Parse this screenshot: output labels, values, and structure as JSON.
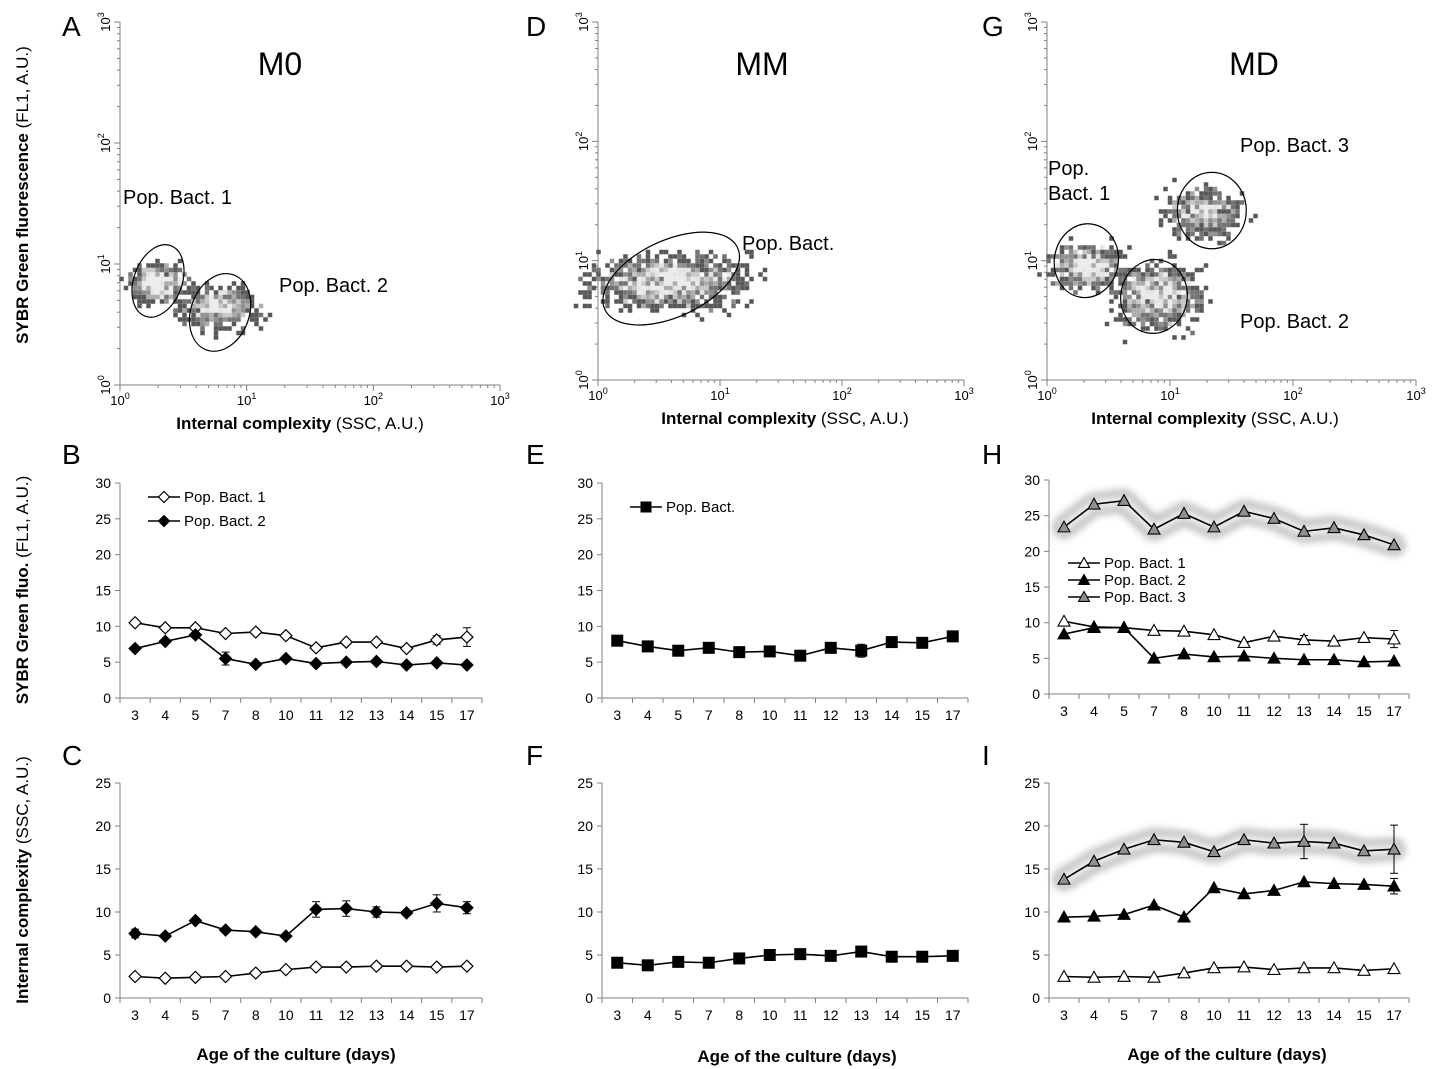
{
  "figure": {
    "y_label_row1": {
      "bold": "SYBR Green fluorescence",
      "normal": " (FL1, A.U.)"
    },
    "y_label_row2": {
      "bold": "SYBR Green fluo.",
      "normal": " (FL1, A.U.)"
    },
    "y_label_row3": {
      "bold": "Internal complexity",
      "normal": " (SSC, A.U.)"
    },
    "flow_xlabel": {
      "bold": "Internal complexity",
      "normal": " (SSC, A.U.)"
    },
    "time_xlabel": "Age of the culture (days)",
    "flow_ticks": [
      {
        "base": "10",
        "exp": "0"
      },
      {
        "base": "10",
        "exp": "1"
      },
      {
        "base": "10",
        "exp": "2"
      },
      {
        "base": "10",
        "exp": "3"
      }
    ]
  },
  "colors": {
    "axis": "#808080",
    "line": "#000000",
    "filled_marker": "#000000",
    "open_marker": "#ffffff",
    "pop3_marker": "#909090",
    "halo": "#9a9a9a",
    "density_high": "#e6e6e6",
    "density_low": "#3a3a3a"
  },
  "chart_data": [
    {
      "id": "A",
      "panel_letter": "A",
      "title": "M0",
      "type": "scatter",
      "note": "flow cytometry density plot",
      "x_scale": "log",
      "y_scale": "log",
      "xlim": [
        1,
        1000
      ],
      "ylim": [
        1,
        1000
      ],
      "xlabel": "Internal complexity (SSC, A.U.)",
      "ylabel": "SYBR Green fluorescence (FL1, A.U.)",
      "populations": [
        {
          "label": "Pop. Bact. 1",
          "center_x": 2.1,
          "center_y": 7.2
        },
        {
          "label": "Pop. Bact. 2",
          "center_x": 6.5,
          "center_y": 4.3
        }
      ]
    },
    {
      "id": "D",
      "panel_letter": "D",
      "title": "MM",
      "type": "scatter",
      "note": "flow cytometry density plot",
      "x_scale": "log",
      "y_scale": "log",
      "xlim": [
        1,
        1000
      ],
      "ylim": [
        1,
        1000
      ],
      "xlabel": "Internal complexity (SSC, A.U.)",
      "populations": [
        {
          "label": "Pop. Bact.",
          "center_x": 3.3,
          "center_y": 6.6
        }
      ]
    },
    {
      "id": "G",
      "panel_letter": "G",
      "title": "MD",
      "type": "scatter",
      "note": "flow cytometry density plot",
      "x_scale": "log",
      "y_scale": "log",
      "xlim": [
        1,
        1000
      ],
      "ylim": [
        1,
        1000
      ],
      "xlabel": "Internal complexity (SSC, A.U.)",
      "populations": [
        {
          "label": "Pop. Bact. 1",
          "center_x": 2.0,
          "center_y": 9.0
        },
        {
          "label": "Pop. Bact. 2",
          "center_x": 8.0,
          "center_y": 5.0
        },
        {
          "label": "Pop. Bact. 3",
          "center_x": 18.0,
          "center_y": 25.0
        }
      ]
    },
    {
      "id": "B",
      "panel_letter": "B",
      "type": "line",
      "categories": [
        "3",
        "4",
        "5",
        "7",
        "8",
        "10",
        "11",
        "12",
        "13",
        "14",
        "15",
        "17"
      ],
      "ylim": [
        0,
        30
      ],
      "yticks": [
        0,
        5,
        10,
        15,
        20,
        25,
        30
      ],
      "ylabel": "SYBR Green fluo. (FL1, A.U.)",
      "legend": "top-left",
      "series": [
        {
          "name": "Pop. Bact. 1",
          "marker": "diamond-open",
          "halo": false,
          "values": [
            10.5,
            9.8,
            9.8,
            9.0,
            9.2,
            8.7,
            7.0,
            7.8,
            7.8,
            6.9,
            8.1,
            8.5
          ],
          "errors": [
            0,
            0,
            0,
            0,
            0,
            0,
            0,
            0,
            0,
            0,
            0.6,
            1.3
          ]
        },
        {
          "name": "Pop. Bact. 2",
          "marker": "diamond-filled",
          "halo": false,
          "values": [
            6.9,
            7.9,
            8.8,
            5.5,
            4.7,
            5.5,
            4.8,
            5.0,
            5.1,
            4.6,
            4.9,
            4.6
          ],
          "errors": [
            0,
            0,
            0,
            0.9,
            0,
            0,
            0,
            0,
            0,
            0,
            0,
            0
          ]
        }
      ]
    },
    {
      "id": "E",
      "panel_letter": "E",
      "type": "line",
      "categories": [
        "3",
        "4",
        "5",
        "7",
        "8",
        "10",
        "11",
        "12",
        "13",
        "14",
        "15",
        "17"
      ],
      "ylim": [
        0,
        30
      ],
      "yticks": [
        0,
        5,
        10,
        15,
        20,
        25,
        30
      ],
      "legend": "top-left",
      "series": [
        {
          "name": "Pop. Bact.",
          "marker": "square-filled",
          "halo": false,
          "values": [
            8.0,
            7.2,
            6.6,
            7.0,
            6.4,
            6.5,
            5.9,
            7.0,
            6.6,
            7.8,
            7.7,
            8.6
          ],
          "errors": [
            0,
            0,
            0,
            0,
            0,
            0,
            0,
            0,
            0.9,
            0,
            0,
            0
          ]
        }
      ]
    },
    {
      "id": "H",
      "panel_letter": "H",
      "type": "line",
      "categories": [
        "3",
        "4",
        "5",
        "7",
        "8",
        "10",
        "11",
        "12",
        "13",
        "14",
        "15",
        "17"
      ],
      "ylim": [
        0,
        30
      ],
      "yticks": [
        0,
        5,
        10,
        15,
        20,
        25,
        30
      ],
      "legend": "center-left",
      "series": [
        {
          "name": "Pop. Bact. 1",
          "marker": "triangle-open",
          "halo": false,
          "values": [
            10.2,
            9.4,
            9.3,
            8.9,
            8.8,
            8.3,
            7.2,
            8.1,
            7.6,
            7.4,
            7.9,
            7.7
          ],
          "errors": [
            0,
            0,
            0,
            0,
            0,
            0,
            0,
            0,
            0.6,
            0,
            0,
            1.2
          ]
        },
        {
          "name": "Pop. Bact. 2",
          "marker": "triangle-filled",
          "halo": false,
          "values": [
            8.4,
            9.3,
            9.3,
            5.0,
            5.6,
            5.2,
            5.3,
            5.0,
            4.8,
            4.8,
            4.5,
            4.6
          ],
          "errors": [
            0,
            0,
            0,
            0,
            0,
            0,
            0,
            0,
            0,
            0,
            0,
            0
          ]
        },
        {
          "name": "Pop. Bact. 3",
          "marker": "triangle-gray",
          "halo": true,
          "values": [
            23.4,
            26.6,
            27.1,
            23.1,
            25.3,
            23.4,
            25.6,
            24.6,
            22.8,
            23.3,
            22.3,
            20.9
          ],
          "errors": [
            0,
            0,
            0,
            0,
            0,
            0,
            0,
            0,
            0,
            0,
            0,
            0
          ]
        }
      ]
    },
    {
      "id": "C",
      "panel_letter": "C",
      "type": "line",
      "categories": [
        "3",
        "4",
        "5",
        "7",
        "8",
        "10",
        "11",
        "12",
        "13",
        "14",
        "15",
        "17"
      ],
      "ylim": [
        0,
        25
      ],
      "yticks": [
        0,
        5,
        10,
        15,
        20,
        25
      ],
      "ylabel": "Internal complexity (SSC, A.U.)",
      "xlabel": "Age of the culture (days)",
      "series": [
        {
          "name": "Pop. Bact. 1",
          "marker": "diamond-open",
          "halo": false,
          "values": [
            2.5,
            2.3,
            2.4,
            2.5,
            2.9,
            3.3,
            3.6,
            3.6,
            3.7,
            3.7,
            3.6,
            3.7
          ],
          "errors": [
            0,
            0,
            0,
            0,
            0,
            0,
            0,
            0,
            0,
            0,
            0,
            0
          ]
        },
        {
          "name": "Pop. Bact. 2",
          "marker": "diamond-filled",
          "halo": false,
          "values": [
            7.5,
            7.2,
            9.0,
            7.9,
            7.7,
            7.2,
            10.3,
            10.4,
            10.0,
            9.9,
            11.0,
            10.5
          ],
          "errors": [
            0.5,
            0,
            0,
            0,
            0,
            0,
            0.9,
            0.9,
            0.6,
            0,
            1.0,
            0.7
          ]
        }
      ]
    },
    {
      "id": "F",
      "panel_letter": "F",
      "type": "line",
      "categories": [
        "3",
        "4",
        "5",
        "7",
        "8",
        "10",
        "11",
        "12",
        "13",
        "14",
        "15",
        "17"
      ],
      "ylim": [
        0,
        25
      ],
      "yticks": [
        0,
        5,
        10,
        15,
        20,
        25
      ],
      "xlabel": "Age of the culture (days)",
      "series": [
        {
          "name": "Pop. Bact.",
          "marker": "square-filled",
          "halo": false,
          "values": [
            4.1,
            3.8,
            4.2,
            4.1,
            4.6,
            5.0,
            5.1,
            4.9,
            5.4,
            4.8,
            4.8,
            4.9
          ],
          "errors": [
            0,
            0,
            0,
            0,
            0,
            0,
            0,
            0,
            0,
            0,
            0,
            0
          ]
        }
      ]
    },
    {
      "id": "I",
      "panel_letter": "I",
      "type": "line",
      "categories": [
        "3",
        "4",
        "5",
        "7",
        "8",
        "10",
        "11",
        "12",
        "13",
        "14",
        "15",
        "17"
      ],
      "ylim": [
        0,
        25
      ],
      "yticks": [
        0,
        5,
        10,
        15,
        20,
        25
      ],
      "xlabel": "Age of the culture (days)",
      "series": [
        {
          "name": "Pop. Bact. 1",
          "marker": "triangle-open",
          "halo": false,
          "values": [
            2.5,
            2.4,
            2.5,
            2.4,
            2.9,
            3.5,
            3.6,
            3.3,
            3.5,
            3.5,
            3.2,
            3.4
          ],
          "errors": [
            0,
            0,
            0,
            0,
            0,
            0,
            0,
            0,
            0,
            0,
            0,
            0
          ]
        },
        {
          "name": "Pop. Bact. 2",
          "marker": "triangle-filled",
          "halo": false,
          "values": [
            9.4,
            9.5,
            9.7,
            10.8,
            9.4,
            12.8,
            12.1,
            12.5,
            13.5,
            13.3,
            13.2,
            13.0
          ],
          "errors": [
            0,
            0,
            0,
            0,
            0,
            0,
            0,
            0,
            0,
            0,
            0,
            0.9
          ]
        },
        {
          "name": "Pop. Bact. 3",
          "marker": "triangle-gray",
          "halo": true,
          "values": [
            13.8,
            15.9,
            17.3,
            18.4,
            18.1,
            17.0,
            18.4,
            18.0,
            18.2,
            18.0,
            17.1,
            17.3
          ],
          "errors": [
            0,
            0,
            0,
            0,
            0,
            0,
            0,
            0,
            2.0,
            0,
            0,
            2.8
          ]
        }
      ]
    }
  ]
}
